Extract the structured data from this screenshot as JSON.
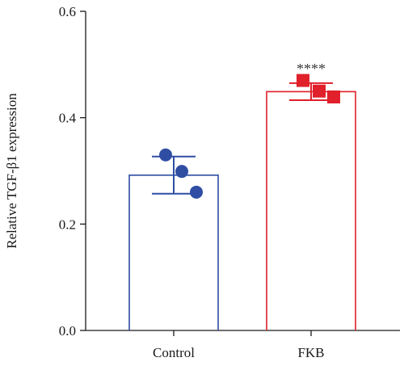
{
  "chart_data": {
    "type": "bar",
    "title": "",
    "xlabel": "",
    "ylabel": "Relative TGF-β1 expression",
    "ylim": [
      0,
      0.6
    ],
    "yticks": [
      "0.0",
      "0.2",
      "0.4",
      "0.6"
    ],
    "grid": false,
    "legend": "none",
    "categories": [
      "Control",
      "FKB"
    ],
    "values": [
      0.292,
      0.449
    ],
    "error_bars": [
      0.035,
      0.016
    ],
    "points": [
      [
        0.33,
        0.299,
        0.26
      ],
      [
        0.47,
        0.45,
        0.439
      ]
    ],
    "colors": [
      "#2f4ea3",
      "#e0202a"
    ],
    "annotations": [
      "",
      "****"
    ]
  }
}
